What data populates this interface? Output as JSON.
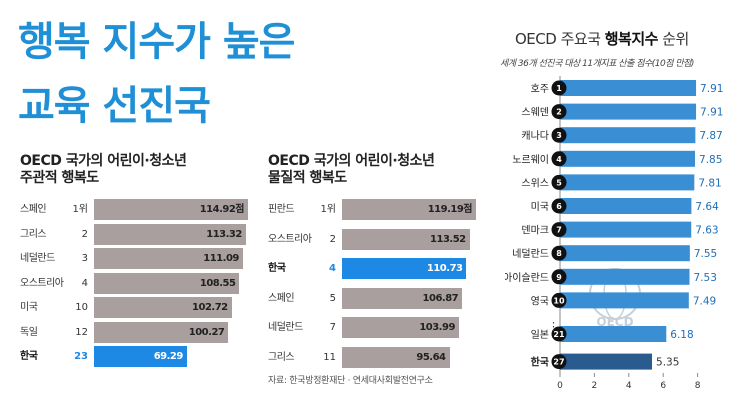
{
  "headline": {
    "line1": "행복 지수가 높은",
    "line2": "교육 선진국"
  },
  "source": "자료: 한국방정환재단 · 연세대사회발전연구소",
  "colors": {
    "headline": "#1f8fd6",
    "bar": "#a99f9f",
    "highlight_bar": "#1e88e5",
    "rank_bar": "#3a8fd4",
    "rank_circle": "#111111"
  },
  "chart_data": [
    {
      "type": "bar",
      "orientation": "horizontal",
      "title": "OECD 국가의 어린이·청소년 주관적 행복도",
      "title_line1": "OECD 국가의 어린이·청소년",
      "title_line2": "주관적 행복도",
      "categories": [
        "스페인",
        "그리스",
        "네덜란드",
        "오스트리아",
        "미국",
        "독일",
        "한국"
      ],
      "ranks": [
        "1위",
        "2",
        "3",
        "4",
        "10",
        "12",
        "23"
      ],
      "values": [
        114.92,
        113.32,
        111.09,
        108.55,
        102.72,
        100.27,
        69.29
      ],
      "labels": [
        "114.92점",
        "113.32",
        "111.09",
        "108.55",
        "102.72",
        "100.27",
        "69.29"
      ],
      "highlight": "한국"
    },
    {
      "type": "bar",
      "orientation": "horizontal",
      "title": "OECD 국가의 어린이·청소년 물질적 행복도",
      "title_line1": "OECD 국가의 어린이·청소년",
      "title_line2": "물질적 행복도",
      "categories": [
        "핀란드",
        "오스트리아",
        "한국",
        "스페인",
        "네덜란드",
        "그리스"
      ],
      "ranks": [
        "1위",
        "2",
        "4",
        "5",
        "7",
        "11"
      ],
      "values": [
        119.19,
        113.52,
        110.73,
        106.87,
        103.99,
        95.64
      ],
      "labels": [
        "119.19점",
        "113.52",
        "110.73",
        "106.87",
        "103.99",
        "95.64"
      ],
      "highlight": "한국"
    },
    {
      "type": "bar",
      "orientation": "horizontal",
      "title_prefix": "OECD 주요국 ",
      "title_bold": "행복지수",
      "title_suffix": " 순위",
      "subtitle": "세계 36개 선진국 대상 11개지표 산출 점수(10점 만점)",
      "categories": [
        "호주",
        "스웨덴",
        "캐나다",
        "노르웨이",
        "스위스",
        "미국",
        "덴마크",
        "네덜란드",
        "아이슬란드",
        "영국",
        "일본",
        "한국"
      ],
      "ranks": [
        "1",
        "2",
        "3",
        "4",
        "5",
        "6",
        "7",
        "8",
        "9",
        "10",
        "21",
        "27"
      ],
      "values": [
        7.91,
        7.91,
        7.87,
        7.85,
        7.81,
        7.64,
        7.63,
        7.55,
        7.53,
        7.49,
        6.18,
        5.35
      ],
      "labels": [
        "7.91",
        "7.91",
        "7.87",
        "7.85",
        "7.81",
        "7.64",
        "7.63",
        "7.55",
        "7.53",
        "7.49",
        "6.18",
        "5.35"
      ],
      "x_ticks": [
        "0",
        "2",
        "4",
        "6",
        "8"
      ],
      "xlim": [
        0,
        8
      ],
      "ellipsis": "⋮",
      "watermark": "OECD",
      "highlight": "한국"
    }
  ]
}
